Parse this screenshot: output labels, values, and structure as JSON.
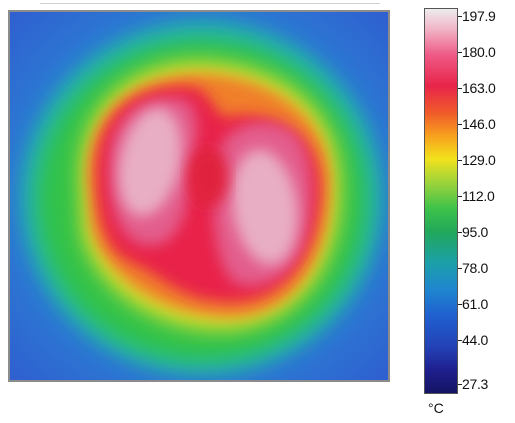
{
  "thermal_scale": {
    "labels": [
      "197.9",
      "180.0",
      "163.0",
      "146.0",
      "129.0",
      "112.0",
      "95.0",
      "78.0",
      "61.0",
      "44.0",
      "27.3"
    ],
    "max": 197.9,
    "min": 27.3,
    "unit": "°C"
  },
  "colors": {
    "background_cold": "#2f6fd6",
    "ring_green": "#2fbf4a",
    "ring_yellow": "#e9e12a",
    "ring_orange": "#f2842a",
    "hot_red": "#e8244a",
    "hottest_pink": "#e9a6bf"
  }
}
